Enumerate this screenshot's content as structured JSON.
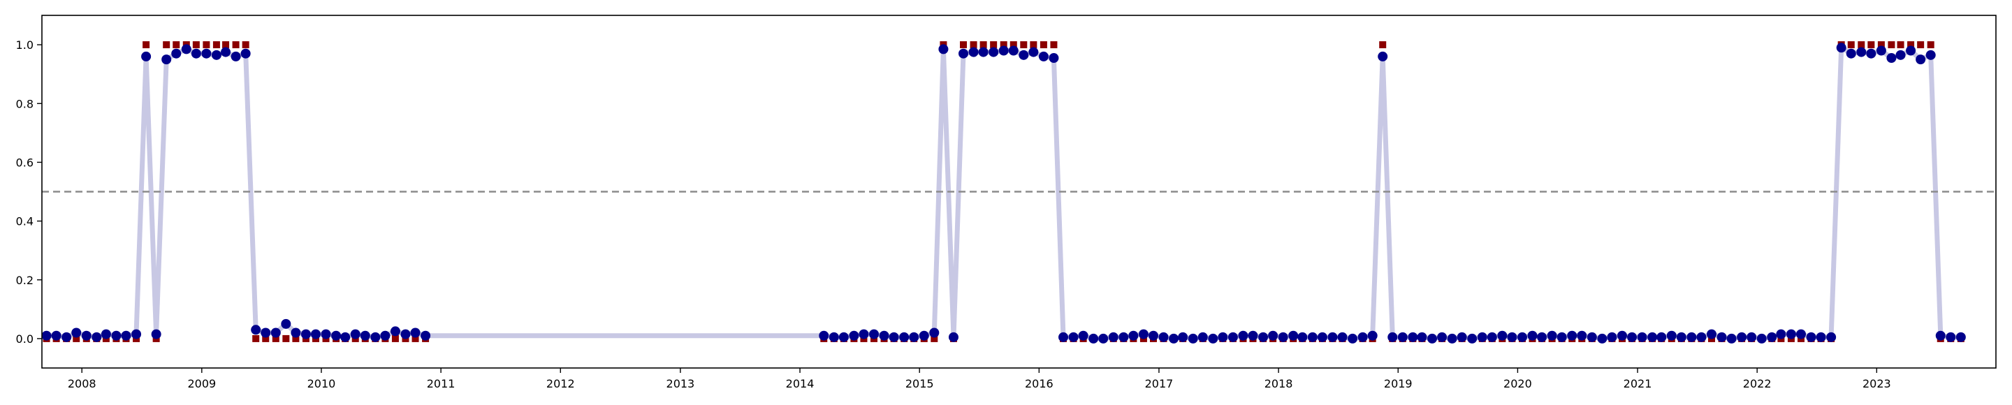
{
  "chart_data": {
    "type": "scatter",
    "title": "",
    "xlabel": "",
    "ylabel": "",
    "xlim": [
      "2007-09-01",
      "2023-12-31"
    ],
    "ylim": [
      -0.1,
      1.1
    ],
    "grid": false,
    "reference_line": {
      "y": 0.5,
      "style": "dashed",
      "color": "#8c8c8c"
    },
    "x_ticks": [
      "2008",
      "2009",
      "2010",
      "2011",
      "2012",
      "2013",
      "2014",
      "2015",
      "2016",
      "2017",
      "2018",
      "2019",
      "2020",
      "2021",
      "2022",
      "2023"
    ],
    "y_ticks": [
      "0.0",
      "0.2",
      "0.4",
      "0.6",
      "0.8",
      "1.0"
    ],
    "colors": {
      "line": "#c8c8e4",
      "probability": "#00008b",
      "label": "#8b0000",
      "threshold": "#8c8c8c"
    },
    "start_month": "2007-09",
    "series": [
      {
        "kind": "line+markers",
        "marker": "circle",
        "values": [
          0.01,
          0.01,
          0.005,
          0.02,
          0.01,
          0.005,
          0.015,
          0.01,
          0.01,
          0.015,
          0.96,
          0.015,
          0.95,
          0.97,
          0.985,
          0.97,
          0.97,
          0.965,
          0.975,
          0.96,
          0.97,
          0.03,
          0.02,
          0.02,
          0.05,
          0.02,
          0.015,
          0.015,
          0.015,
          0.01,
          0.005,
          0.015,
          0.01,
          0.005,
          0.01,
          0.025,
          0.015,
          0.02,
          0.01,
          0.01,
          0.005,
          0.005,
          0.01,
          0.015,
          0.015,
          0.01,
          0.005,
          0.005,
          0.005,
          0.01,
          0.02,
          0.985,
          0.005,
          0.97,
          0.975,
          0.975,
          0.975,
          0.98,
          0.98,
          0.965,
          0.975,
          0.96,
          0.955,
          0.005,
          0.005,
          0.01,
          0.0,
          0.0,
          0.005,
          0.005,
          0.01,
          0.015,
          0.01,
          0.005,
          0.0,
          0.005,
          0.0,
          0.005,
          0.0,
          0.005,
          0.005,
          0.01,
          0.01,
          0.005,
          0.01,
          0.005,
          0.01,
          0.005,
          0.005,
          0.005,
          0.005,
          0.005,
          0.0,
          0.005,
          0.01,
          0.96,
          0.005,
          0.005,
          0.005,
          0.005,
          0.0,
          0.005,
          0.0,
          0.005,
          0.0,
          0.005,
          0.005,
          0.01,
          0.005,
          0.005,
          0.01,
          0.005,
          0.01,
          0.005,
          0.01,
          0.01,
          0.005,
          0.0,
          0.005,
          0.01,
          0.005,
          0.005,
          0.005,
          0.005,
          0.01,
          0.005,
          0.005,
          0.005,
          0.015,
          0.005,
          0.0,
          0.005,
          0.005,
          0.0,
          0.005,
          0.015,
          0.015,
          0.015,
          0.005,
          0.005,
          0.005,
          0.99,
          0.97,
          0.975,
          0.97,
          0.98,
          0.955,
          0.965,
          0.98,
          0.95,
          0.965,
          0.01,
          0.005,
          0.005
        ],
        "month_offsets_part2": [
          78
        ]
      },
      {
        "kind": "markers",
        "marker": "square",
        "values": [
          0,
          0,
          0,
          0,
          0,
          0,
          0,
          0,
          0,
          0,
          1,
          0,
          1,
          1,
          1,
          1,
          1,
          1,
          1,
          1,
          1,
          0,
          0,
          0,
          0,
          0,
          0,
          0,
          0,
          0,
          0,
          0,
          0,
          0,
          0,
          0,
          0,
          0,
          0,
          0,
          0,
          0,
          0,
          0,
          0,
          0,
          0,
          0,
          0,
          0,
          0,
          1,
          0,
          1,
          1,
          1,
          1,
          1,
          1,
          1,
          1,
          1,
          1,
          0,
          0,
          0,
          0,
          0,
          0,
          0,
          0,
          0,
          0,
          0,
          0,
          0,
          0,
          0,
          0,
          0,
          0,
          0,
          0,
          0,
          0,
          0,
          0,
          0,
          0,
          0,
          0,
          0,
          0,
          0,
          0,
          1,
          0,
          0,
          0,
          0,
          0,
          0,
          0,
          0,
          0,
          0,
          0,
          0,
          0,
          0,
          0,
          0,
          0,
          0,
          0,
          0,
          0,
          0,
          0,
          0,
          0,
          0,
          0,
          0,
          0,
          0,
          0,
          0,
          0,
          0,
          0,
          0,
          0,
          0,
          0,
          0,
          0,
          0,
          0,
          0,
          0,
          1,
          1,
          1,
          1,
          1,
          1,
          1,
          1,
          1,
          1,
          0,
          0,
          0
        ]
      }
    ]
  }
}
